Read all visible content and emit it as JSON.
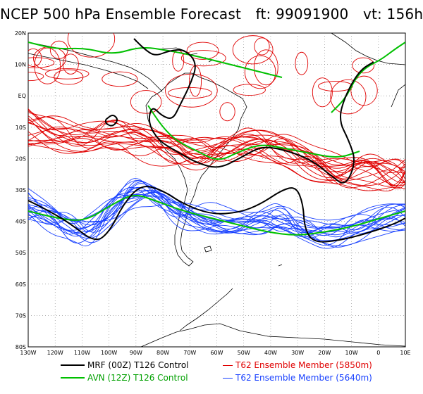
{
  "title": {
    "main": "NCEP 500 hPa Ensemble Forecast",
    "ft": "ft: 99091900",
    "vt": "vt: 156h"
  },
  "axes": {
    "lat_labels": [
      "20N",
      "10N",
      "EQ",
      "10S",
      "20S",
      "30S",
      "40S",
      "50S",
      "60S",
      "70S",
      "80S"
    ],
    "lon_labels": [
      "130W",
      "120W",
      "110W",
      "100W",
      "90W",
      "80W",
      "70W",
      "60W",
      "50W",
      "40W",
      "30W",
      "20W",
      "10W",
      "0",
      "10E"
    ]
  },
  "legend": [
    {
      "label": "MRF (00Z) T126 Control",
      "color": "#000000"
    },
    {
      "label": "AVN (12Z) T126 Control",
      "color": "#00c000"
    },
    {
      "label": "T62 Ensemble Member (5850m)",
      "color": "#e00000"
    },
    {
      "label": "T62 Ensemble Member (5640m)",
      "color": "#1040ff"
    }
  ],
  "colors": {
    "red": "#e00000",
    "blue": "#1840ff",
    "green": "#00c000",
    "black": "#000000",
    "grid": "#808080"
  }
}
